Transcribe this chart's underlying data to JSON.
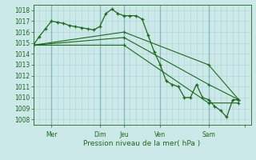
{
  "xlabel": "Pression niveau de la mer( hPa )",
  "bg_color": "#cce8e8",
  "grid_color_major": "#88bbbb",
  "grid_color_minor": "#aad4d4",
  "line_color": "#1a6b1a",
  "ylim": [
    1007.5,
    1018.5
  ],
  "xlim": [
    0,
    216
  ],
  "x_day_ticks": [
    18,
    66,
    90,
    126,
    174,
    210
  ],
  "x_day_labels": [
    "Mer",
    "Dim",
    "Jeu",
    "Ven",
    "Sam",
    ""
  ],
  "x_vert_lines": [
    18,
    66,
    90,
    126,
    174
  ],
  "line_detail": {
    "x": [
      0,
      6,
      12,
      18,
      24,
      30,
      36,
      42,
      48,
      54,
      60,
      66,
      72,
      78,
      84,
      90,
      96,
      102,
      108,
      114,
      120,
      126,
      132,
      138,
      144,
      150,
      156,
      162,
      168,
      174,
      180,
      186,
      192,
      198,
      204
    ],
    "y": [
      1014.8,
      1015.6,
      1016.3,
      1017.0,
      1016.9,
      1016.8,
      1016.6,
      1016.5,
      1016.4,
      1016.3,
      1016.2,
      1016.5,
      1017.7,
      1018.1,
      1017.7,
      1017.5,
      1017.5,
      1017.5,
      1017.2,
      1015.7,
      1014.2,
      1013.0,
      1011.5,
      1011.2,
      1011.0,
      1010.0,
      1010.0,
      1011.2,
      1010.0,
      1009.8,
      1009.2,
      1008.8,
      1008.2,
      1009.8,
      1009.8
    ]
  },
  "line_trend1": {
    "x": [
      0,
      90,
      174,
      204
    ],
    "y": [
      1014.8,
      1016.0,
      1013.0,
      1009.8
    ]
  },
  "line_trend2": {
    "x": [
      0,
      90,
      174,
      204
    ],
    "y": [
      1014.8,
      1015.5,
      1011.2,
      1009.8
    ]
  },
  "line_trend3": {
    "x": [
      0,
      90,
      174,
      204
    ],
    "y": [
      1014.8,
      1014.8,
      1009.5,
      1009.5
    ]
  }
}
